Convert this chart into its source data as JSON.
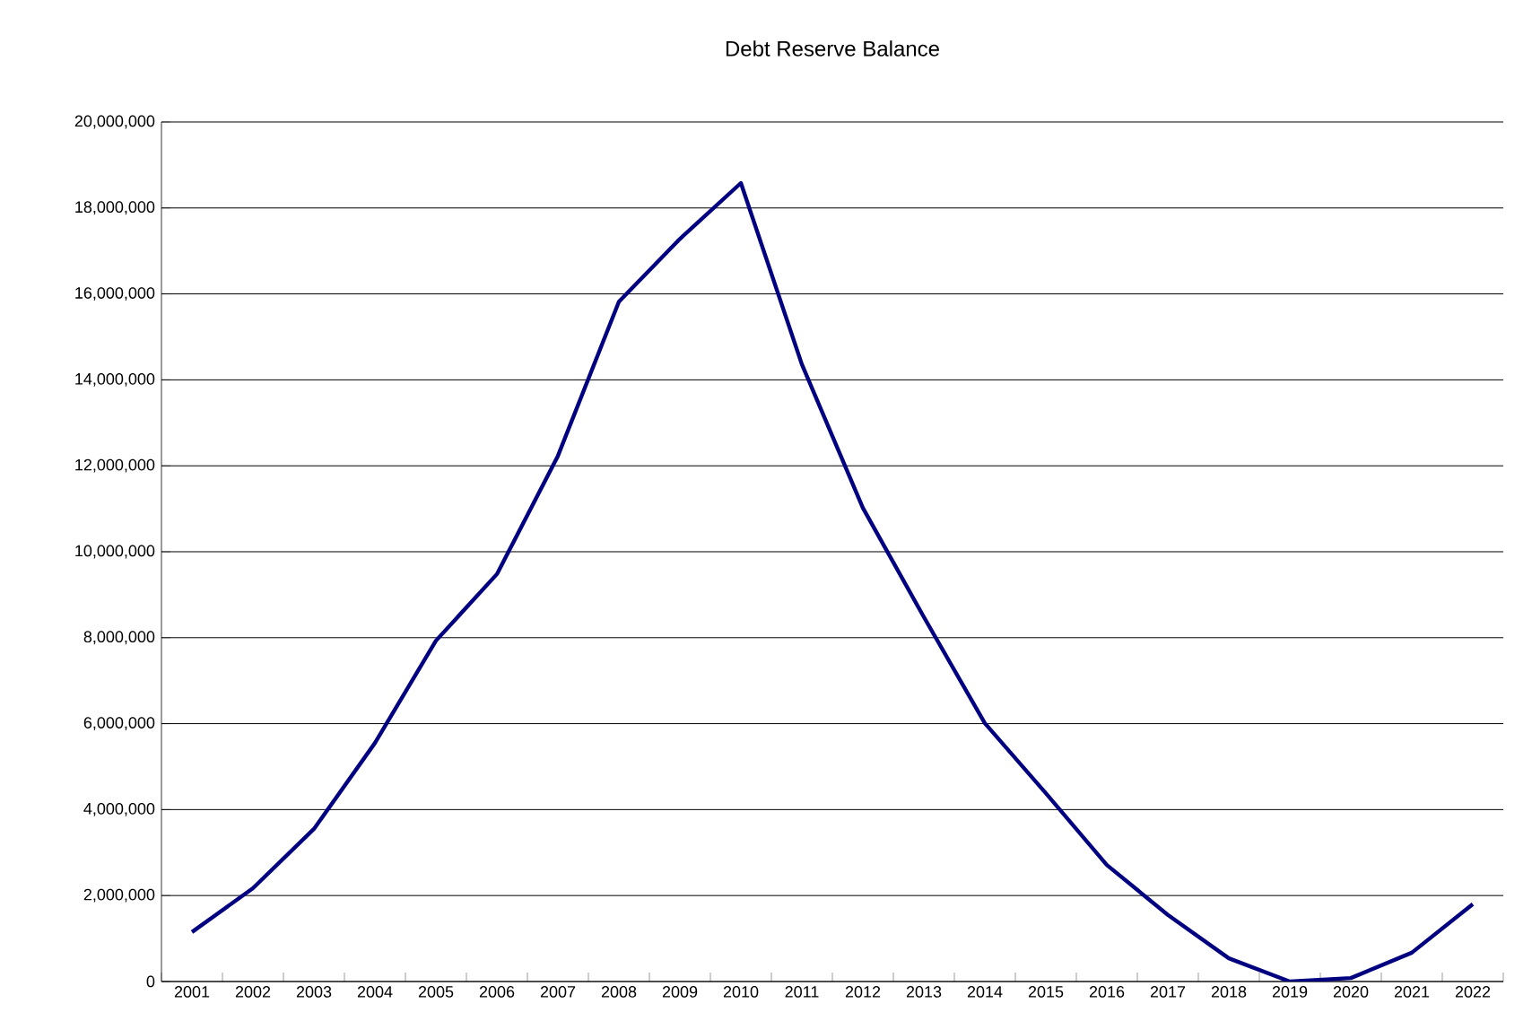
{
  "chart_data": {
    "type": "line",
    "title": "Debt Reserve Balance",
    "categories": [
      "2001",
      "2002",
      "2003",
      "2004",
      "2005",
      "2006",
      "2007",
      "2008",
      "2009",
      "2010",
      "2011",
      "2012",
      "2013",
      "2014",
      "2015",
      "2016",
      "2017",
      "2018",
      "2019",
      "2020",
      "2021",
      "2022"
    ],
    "series": [
      {
        "color": "#000080",
        "values": [
          1150000,
          2170000,
          3550000,
          5550000,
          7930000,
          9480000,
          12230000,
          15820000,
          17280000,
          18580000,
          14360000,
          11020000,
          8480000,
          6010000,
          4380000,
          2710000,
          1550000,
          540000,
          0,
          80000,
          670000,
          1800000
        ]
      }
    ],
    "ylim": [
      0,
      20000000
    ],
    "yticks": [
      0,
      {
        "value": 2000000,
        "label": "2,000,000"
      },
      {
        "value": 4000000,
        "label": "4,000,000"
      },
      {
        "value": 6000000,
        "label": "6,000,000"
      },
      {
        "value": 8000000,
        "label": "8,000,000"
      },
      {
        "value": 10000000,
        "label": "10,000,000"
      },
      {
        "value": 12000000,
        "label": "12,000,000"
      },
      {
        "value": 14000000,
        "label": "14,000,000"
      },
      {
        "value": 16000000,
        "label": "16,000,000"
      },
      {
        "value": 18000000,
        "label": "18,000,000"
      },
      {
        "value": 20000000,
        "label": "20,000,000"
      }
    ],
    "grid": "y",
    "marker": "none",
    "line_style": "solid"
  }
}
